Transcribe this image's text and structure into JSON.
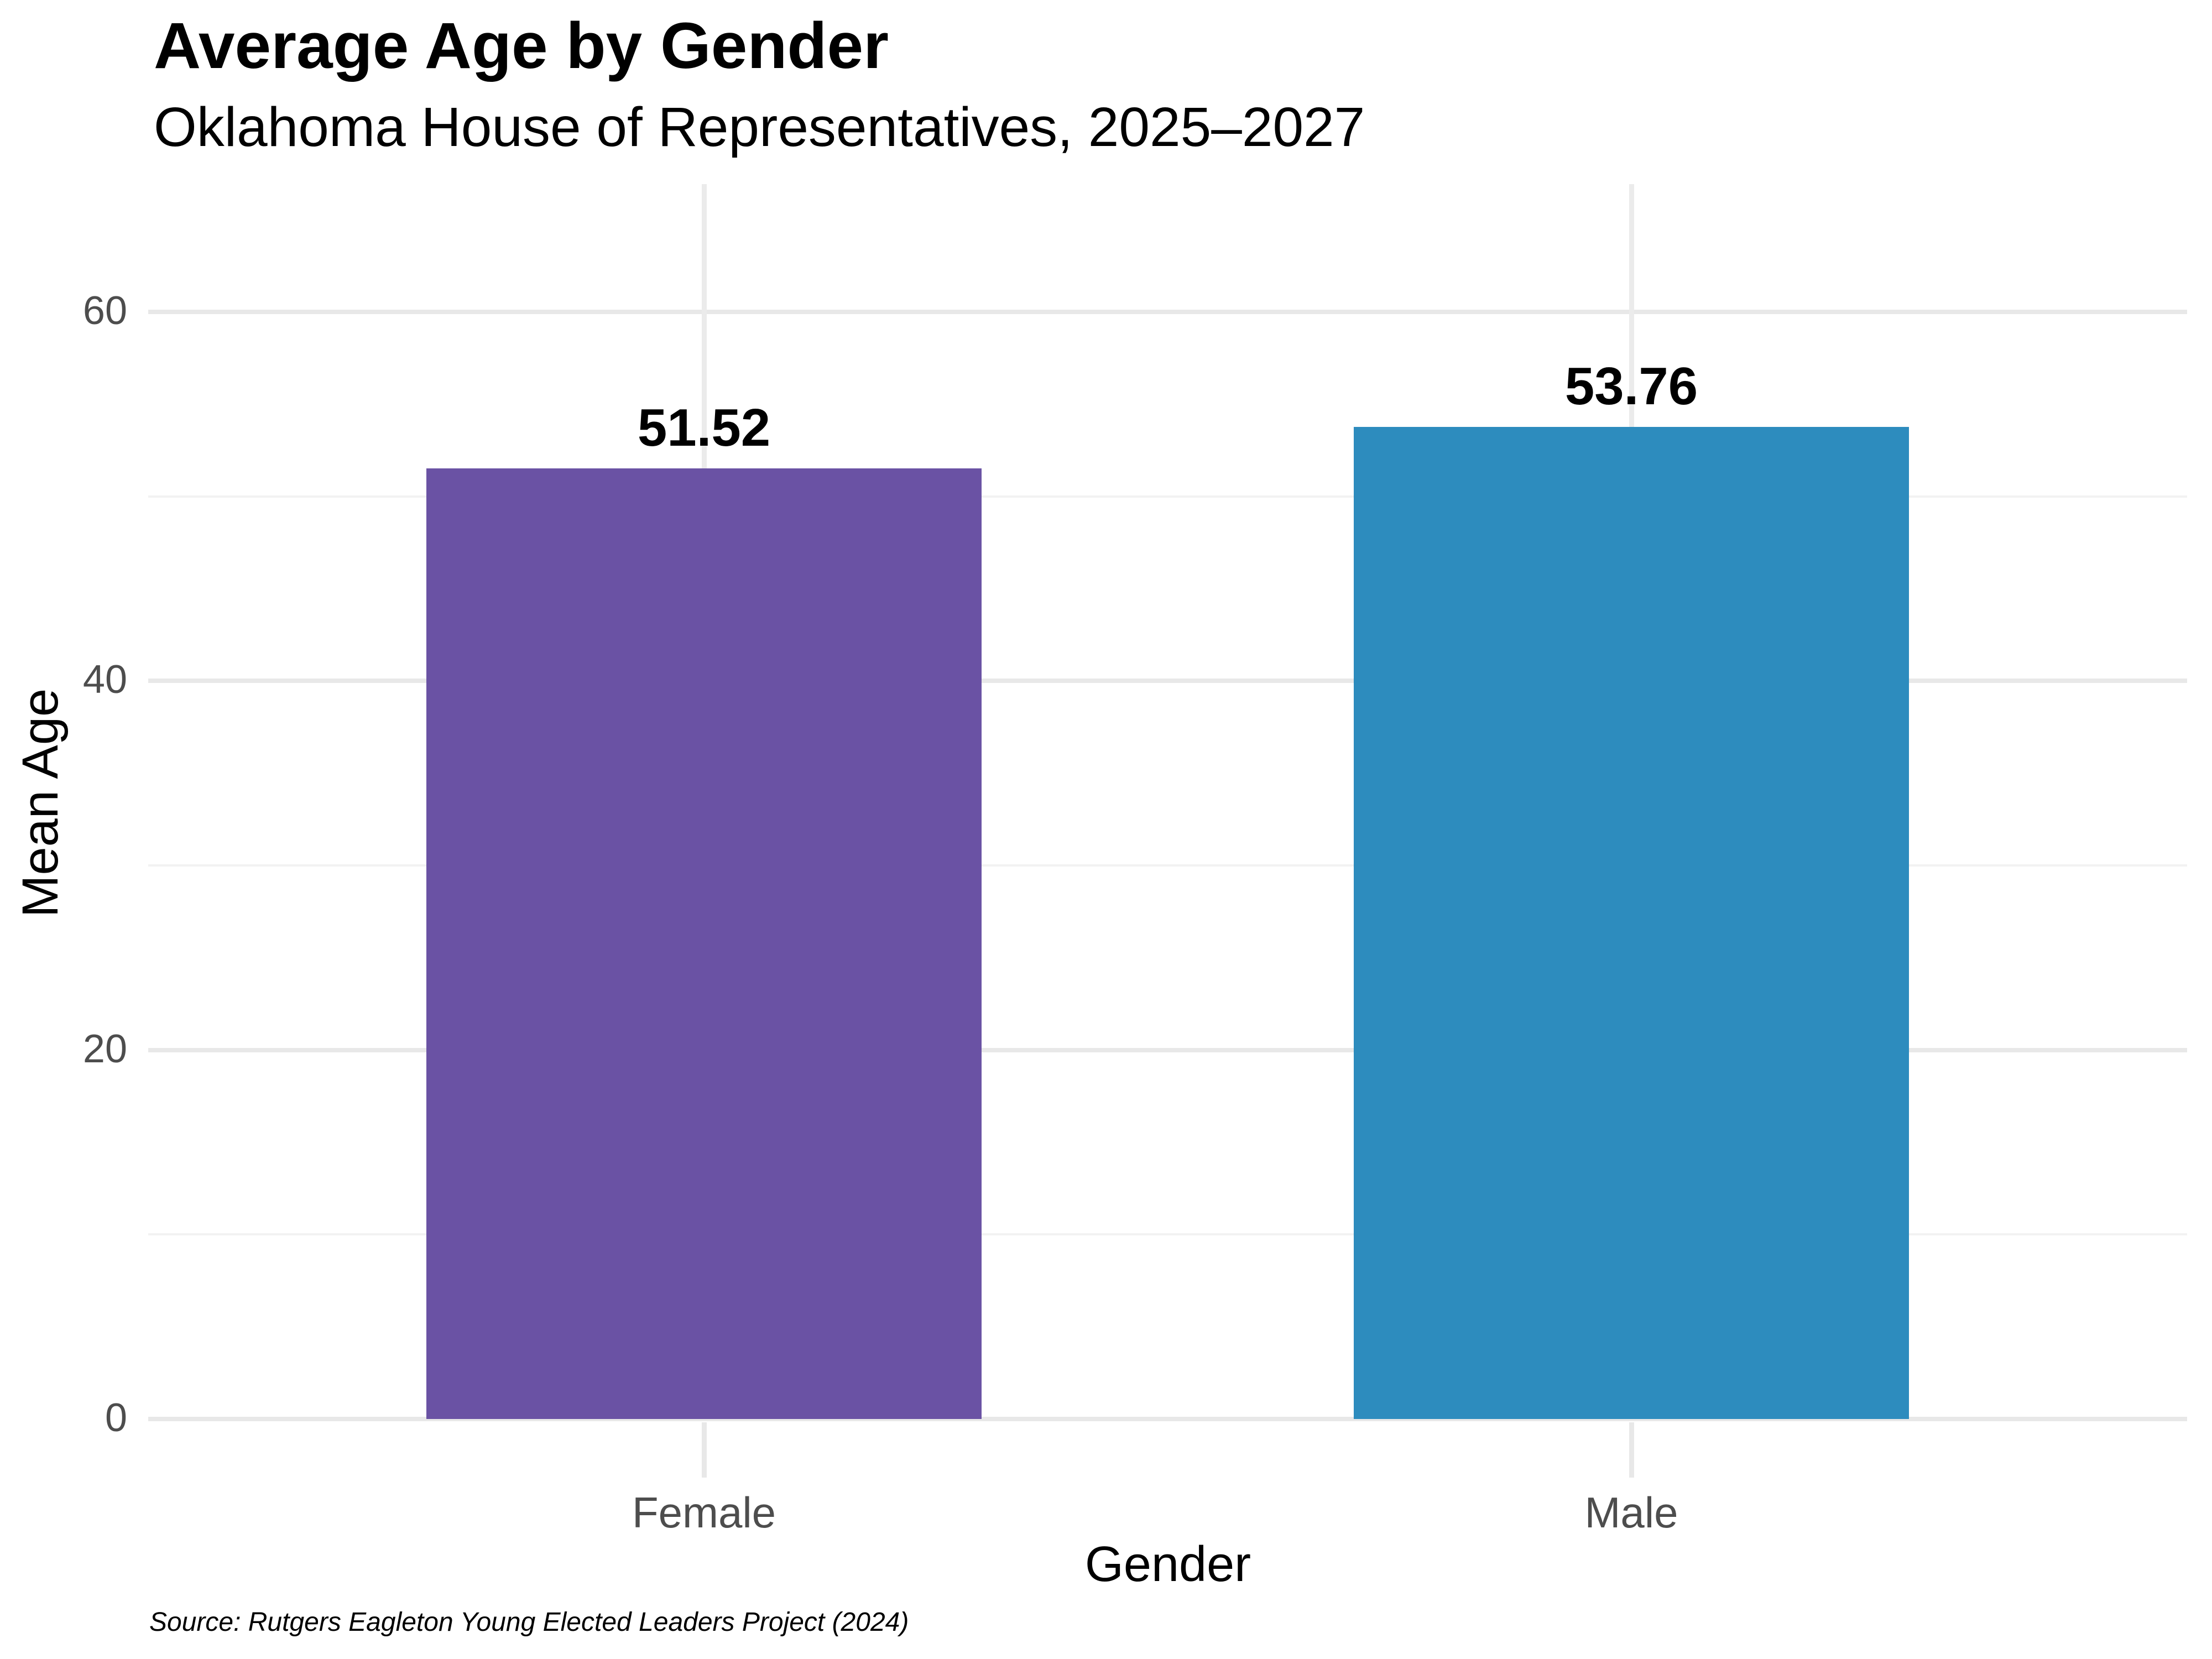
{
  "header": {
    "title": "Average Age by Gender",
    "subtitle": "Oklahoma House of Representatives, 2025–2027"
  },
  "caption": {
    "source": "Source: Rutgers Eagleton Young Elected Leaders Project (2024)"
  },
  "chart_data": {
    "type": "bar",
    "title": "Average Age by Gender",
    "subtitle": "Oklahoma House of Representatives, 2025–2027",
    "xlabel": "Gender",
    "ylabel": "Mean Age",
    "categories": [
      "Female",
      "Male"
    ],
    "values": [
      51.52,
      53.76
    ],
    "value_labels": [
      "51.52",
      "53.76"
    ],
    "bar_colors": [
      "#6A52A4",
      "#2D8CBE"
    ],
    "ylim": [
      0,
      66.9
    ],
    "y_major_ticks": [
      0,
      20,
      40,
      60
    ],
    "y_minor_gridlines": [
      10,
      30,
      50
    ],
    "legend": "none",
    "grid": "horizontal major+minor, vertical major at category centers",
    "colors": {
      "grid_major": "#E8E8E8",
      "grid_minor": "#F2F2F2",
      "grid_vertical": "#EBEBEB",
      "tick_mark": "#E8E8E8",
      "axis_text": "#4D4D4D",
      "title_text": "#000000"
    }
  }
}
